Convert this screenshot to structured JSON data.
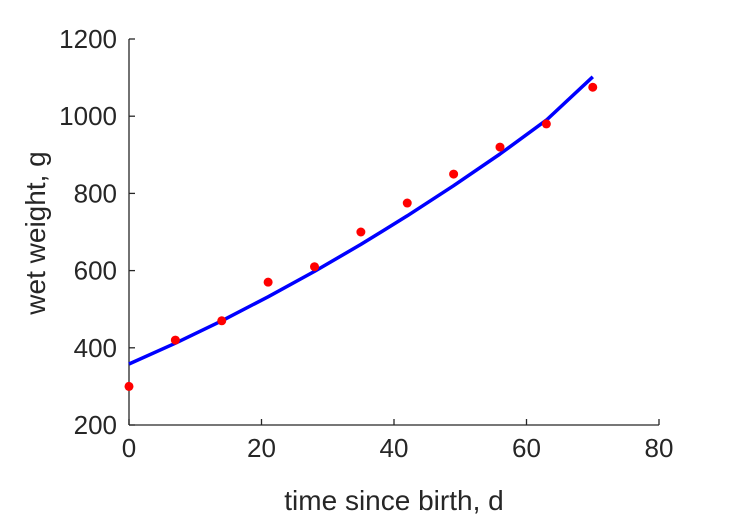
{
  "chart_data": {
    "type": "scatter",
    "xlabel": "time since birth, d",
    "ylabel": "wet weight, g",
    "xlim": [
      0,
      80
    ],
    "ylim": [
      200,
      1200
    ],
    "xticks": [
      0,
      20,
      40,
      60,
      80
    ],
    "yticks": [
      200,
      400,
      600,
      800,
      1000,
      1200
    ],
    "grid": false,
    "box": false,
    "series": [
      {
        "kind": "points",
        "color": "#ff0000",
        "x": [
          0,
          7,
          14,
          21,
          28,
          35,
          42,
          49,
          56,
          63,
          70
        ],
        "y": [
          300,
          420,
          470,
          570,
          610,
          700,
          775,
          850,
          920,
          980,
          1075
        ]
      },
      {
        "kind": "line",
        "color": "#0000ff",
        "x": [
          0,
          7,
          14,
          21,
          28,
          35,
          42,
          49,
          56,
          63,
          70
        ],
        "y": [
          358,
          412,
          470,
          532,
          598,
          668,
          742,
          820,
          902,
          990,
          1102
        ]
      }
    ]
  }
}
